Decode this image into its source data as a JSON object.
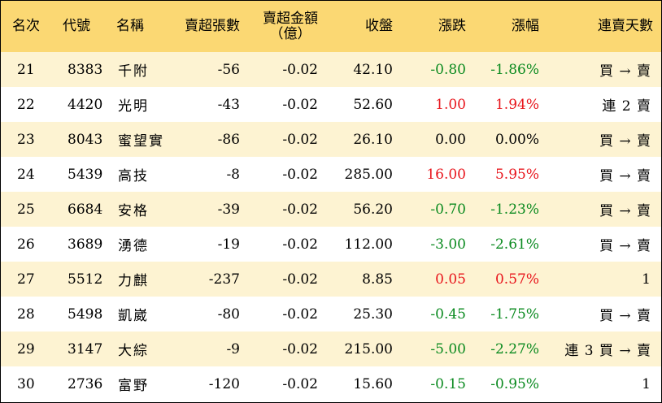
{
  "headers": {
    "rank": "名次",
    "code": "代號",
    "name": "名稱",
    "net_sell_lots": "賣超張數",
    "net_sell_amount_line1": "賣超金額",
    "net_sell_amount_line2": "（億）",
    "close": "收盤",
    "change": "漲跌",
    "change_pct": "漲幅",
    "sell_streak": "連賣天數"
  },
  "rows": [
    {
      "rank": "21",
      "code": "8383",
      "name": "千附",
      "lots": "-56",
      "amount": "-0.02",
      "close": "42.10",
      "change": "-0.80",
      "pct": "-1.86%",
      "dir": "down",
      "streak": "買 → 賣"
    },
    {
      "rank": "22",
      "code": "4420",
      "name": "光明",
      "lots": "-43",
      "amount": "-0.02",
      "close": "52.60",
      "change": "1.00",
      "pct": "1.94%",
      "dir": "up",
      "streak": "連 2 賣"
    },
    {
      "rank": "23",
      "code": "8043",
      "name": "蜜望實",
      "lots": "-86",
      "amount": "-0.02",
      "close": "26.10",
      "change": "0.00",
      "pct": "0.00%",
      "dir": "flat",
      "streak": "買 → 賣"
    },
    {
      "rank": "24",
      "code": "5439",
      "name": "高技",
      "lots": "-8",
      "amount": "-0.02",
      "close": "285.00",
      "change": "16.00",
      "pct": "5.95%",
      "dir": "up",
      "streak": "買 → 賣"
    },
    {
      "rank": "25",
      "code": "6684",
      "name": "安格",
      "lots": "-39",
      "amount": "-0.02",
      "close": "56.20",
      "change": "-0.70",
      "pct": "-1.23%",
      "dir": "down",
      "streak": "買 → 賣"
    },
    {
      "rank": "26",
      "code": "3689",
      "name": "湧德",
      "lots": "-19",
      "amount": "-0.02",
      "close": "112.00",
      "change": "-3.00",
      "pct": "-2.61%",
      "dir": "down",
      "streak": "買 → 賣"
    },
    {
      "rank": "27",
      "code": "5512",
      "name": "力麒",
      "lots": "-237",
      "amount": "-0.02",
      "close": "8.85",
      "change": "0.05",
      "pct": "0.57%",
      "dir": "up",
      "streak": "1"
    },
    {
      "rank": "28",
      "code": "5498",
      "name": "凱崴",
      "lots": "-80",
      "amount": "-0.02",
      "close": "25.30",
      "change": "-0.45",
      "pct": "-1.75%",
      "dir": "down",
      "streak": "買 → 賣"
    },
    {
      "rank": "29",
      "code": "3147",
      "name": "大綜",
      "lots": "-9",
      "amount": "-0.02",
      "close": "215.00",
      "change": "-5.00",
      "pct": "-2.27%",
      "dir": "down",
      "streak": "連 3 買 → 賣"
    },
    {
      "rank": "30",
      "code": "2736",
      "name": "富野",
      "lots": "-120",
      "amount": "-0.02",
      "close": "15.60",
      "change": "-0.15",
      "pct": "-0.95%",
      "dir": "down",
      "streak": "1"
    }
  ],
  "colors": {
    "header_bg": "#fbd873",
    "row_stripe": "#fdf3d2",
    "up": "#e8141b",
    "down": "#0a8a1f"
  }
}
